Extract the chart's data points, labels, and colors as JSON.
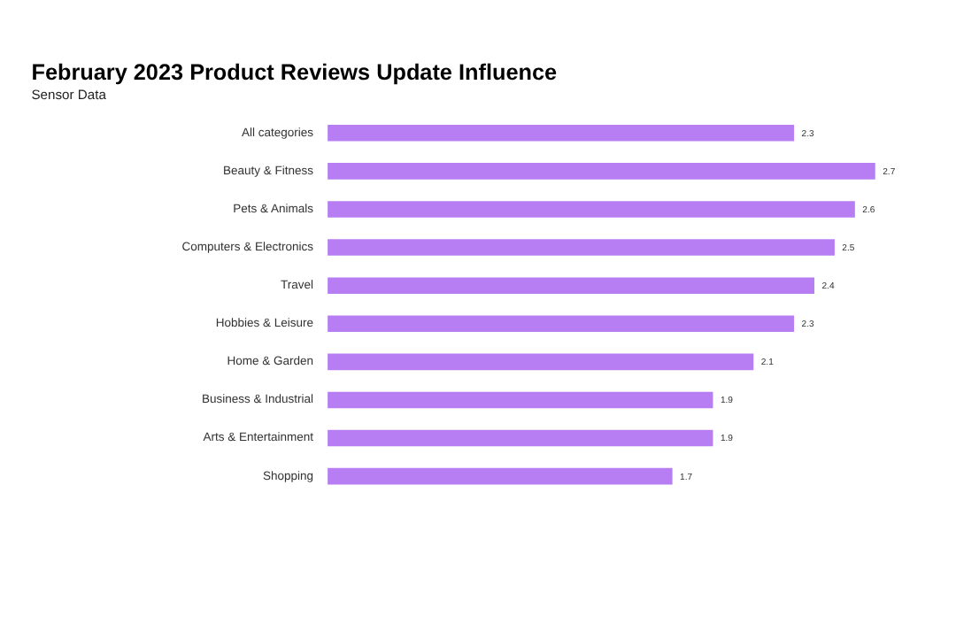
{
  "chart_data": {
    "type": "bar",
    "orientation": "horizontal",
    "title": "February 2023 Product Reviews Update Influence",
    "subtitle": "Sensor Data",
    "categories": [
      "All categories",
      "Beauty & Fitness",
      "Pets & Animals",
      "Computers & Electronics",
      "Travel",
      "Hobbies & Leisure",
      "Home & Garden",
      "Business & Industrial",
      "Arts & Entertainment",
      "Shopping"
    ],
    "values": [
      2.3,
      2.7,
      2.6,
      2.5,
      2.4,
      2.3,
      2.1,
      1.9,
      1.9,
      1.7
    ],
    "color": "#b77ef3",
    "data_labels": true,
    "grid": false
  }
}
